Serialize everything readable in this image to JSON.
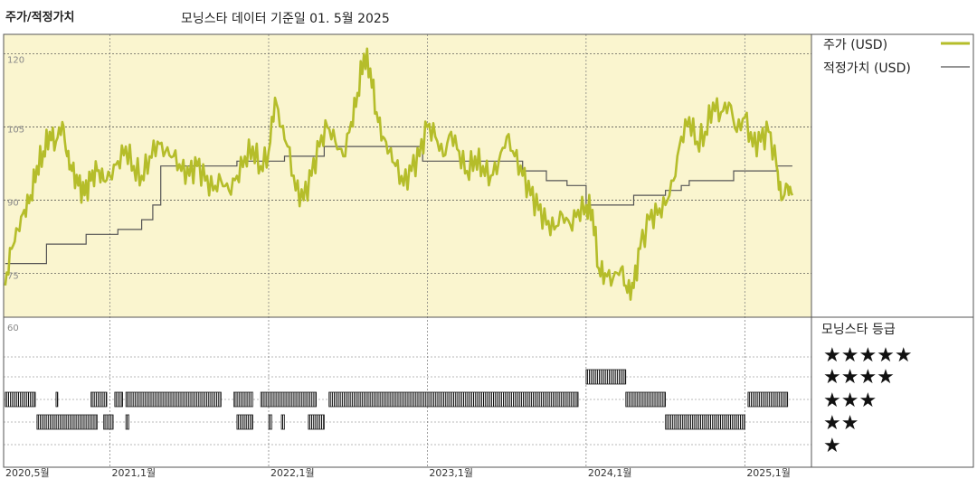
{
  "header": {
    "title": "주가/적정가치",
    "subtitle": "모닝스타 데이터 기준일 01. 5월 2025"
  },
  "legend": {
    "price_label": "주가 (USD)",
    "fair_label": "적정가치 (USD)",
    "price_color": "#b5bd2a",
    "fair_color": "#555555"
  },
  "rating_panel": {
    "title": "모닝스타 등급",
    "ymax_label": "60",
    "star_labels": [
      "★★★★★",
      "★★★★",
      "★★★",
      "★★",
      "★"
    ]
  },
  "chart_data": {
    "type": "line",
    "xlim": [
      2020.33,
      2025.42
    ],
    "ylim": [
      66,
      124
    ],
    "y_ticks": [
      {
        "value": 120,
        "label": "120"
      },
      {
        "value": 105,
        "label": "105"
      },
      {
        "value": 90,
        "label": "90"
      },
      {
        "value": 75,
        "label": "75"
      }
    ],
    "x_ticks": [
      {
        "value": 2020.36,
        "label": "2020,5월"
      },
      {
        "value": 2021.0,
        "label": "2021,1월"
      },
      {
        "value": 2022.0,
        "label": "2022,1월"
      },
      {
        "value": 2023.0,
        "label": "2023,1월"
      },
      {
        "value": 2024.0,
        "label": "2024,1월"
      },
      {
        "value": 2025.0,
        "label": "2025,1월"
      }
    ],
    "series": [
      {
        "name": "주가 (USD)",
        "color": "#b5bd2a",
        "points": [
          [
            2020.34,
            72.5
          ],
          [
            2020.38,
            80
          ],
          [
            2020.42,
            84
          ],
          [
            2020.46,
            88
          ],
          [
            2020.5,
            91
          ],
          [
            2020.54,
            97
          ],
          [
            2020.58,
            100
          ],
          [
            2020.62,
            104
          ],
          [
            2020.66,
            102
          ],
          [
            2020.7,
            106
          ],
          [
            2020.73,
            99
          ],
          [
            2020.76,
            96
          ],
          [
            2020.8,
            93
          ],
          [
            2020.84,
            91
          ],
          [
            2020.88,
            94
          ],
          [
            2020.92,
            96
          ],
          [
            2020.96,
            94
          ],
          [
            2021.0,
            95
          ],
          [
            2021.05,
            98
          ],
          [
            2021.1,
            101
          ],
          [
            2021.15,
            97
          ],
          [
            2021.2,
            95
          ],
          [
            2021.25,
            99
          ],
          [
            2021.3,
            102
          ],
          [
            2021.35,
            100
          ],
          [
            2021.4,
            99
          ],
          [
            2021.45,
            96
          ],
          [
            2021.5,
            95
          ],
          [
            2021.55,
            97
          ],
          [
            2021.6,
            94
          ],
          [
            2021.65,
            92
          ],
          [
            2021.7,
            94
          ],
          [
            2021.75,
            92
          ],
          [
            2021.8,
            95
          ],
          [
            2021.85,
            99
          ],
          [
            2021.9,
            101
          ],
          [
            2021.95,
            97
          ],
          [
            2022.0,
            100
          ],
          [
            2022.04,
            111
          ],
          [
            2022.08,
            105
          ],
          [
            2022.12,
            101
          ],
          [
            2022.17,
            92
          ],
          [
            2022.22,
            90
          ],
          [
            2022.27,
            95
          ],
          [
            2022.32,
            101
          ],
          [
            2022.37,
            105
          ],
          [
            2022.42,
            102
          ],
          [
            2022.47,
            99
          ],
          [
            2022.52,
            106
          ],
          [
            2022.56,
            112
          ],
          [
            2022.6,
            120
          ],
          [
            2022.64,
            117
          ],
          [
            2022.68,
            108
          ],
          [
            2022.72,
            103
          ],
          [
            2022.76,
            100
          ],
          [
            2022.8,
            97
          ],
          [
            2022.85,
            93
          ],
          [
            2022.9,
            96
          ],
          [
            2022.95,
            99
          ],
          [
            2023.0,
            105
          ],
          [
            2023.05,
            103
          ],
          [
            2023.1,
            99
          ],
          [
            2023.15,
            104
          ],
          [
            2023.2,
            100
          ],
          [
            2023.25,
            96
          ],
          [
            2023.3,
            99
          ],
          [
            2023.35,
            97
          ],
          [
            2023.4,
            95
          ],
          [
            2023.45,
            98
          ],
          [
            2023.5,
            103
          ],
          [
            2023.55,
            99
          ],
          [
            2023.6,
            95
          ],
          [
            2023.65,
            91
          ],
          [
            2023.7,
            88
          ],
          [
            2023.75,
            85
          ],
          [
            2023.8,
            84
          ],
          [
            2023.85,
            87
          ],
          [
            2023.9,
            85
          ],
          [
            2023.95,
            88
          ],
          [
            2024.0,
            89
          ],
          [
            2024.04,
            88
          ],
          [
            2024.08,
            76
          ],
          [
            2024.12,
            75
          ],
          [
            2024.17,
            74
          ],
          [
            2024.22,
            76
          ],
          [
            2024.26,
            71
          ],
          [
            2024.3,
            72
          ],
          [
            2024.34,
            80
          ],
          [
            2024.4,
            86
          ],
          [
            2024.45,
            87
          ],
          [
            2024.5,
            89
          ],
          [
            2024.55,
            94
          ],
          [
            2024.6,
            103
          ],
          [
            2024.65,
            107
          ],
          [
            2024.7,
            102
          ],
          [
            2024.75,
            104
          ],
          [
            2024.8,
            110
          ],
          [
            2024.85,
            108
          ],
          [
            2024.9,
            110
          ],
          [
            2024.95,
            104
          ],
          [
            2025.0,
            107
          ],
          [
            2025.05,
            101
          ],
          [
            2025.1,
            102
          ],
          [
            2025.15,
            104
          ],
          [
            2025.2,
            97
          ],
          [
            2025.23,
            90
          ],
          [
            2025.27,
            93
          ],
          [
            2025.3,
            91
          ]
        ]
      },
      {
        "name": "적정가치 (USD)",
        "color": "#555555",
        "step": true,
        "points": [
          [
            2020.34,
            77
          ],
          [
            2020.6,
            77
          ],
          [
            2020.6,
            81
          ],
          [
            2020.85,
            81
          ],
          [
            2020.85,
            83
          ],
          [
            2021.05,
            83
          ],
          [
            2021.05,
            84
          ],
          [
            2021.2,
            84
          ],
          [
            2021.2,
            86
          ],
          [
            2021.27,
            86
          ],
          [
            2021.27,
            89
          ],
          [
            2021.32,
            89
          ],
          [
            2021.32,
            97
          ],
          [
            2021.8,
            97
          ],
          [
            2021.8,
            98
          ],
          [
            2022.1,
            98
          ],
          [
            2022.1,
            99
          ],
          [
            2022.35,
            99
          ],
          [
            2022.35,
            101
          ],
          [
            2022.97,
            101
          ],
          [
            2022.97,
            98
          ],
          [
            2023.6,
            98
          ],
          [
            2023.6,
            96
          ],
          [
            2023.75,
            96
          ],
          [
            2023.75,
            94
          ],
          [
            2023.88,
            94
          ],
          [
            2023.88,
            93
          ],
          [
            2024.0,
            93
          ],
          [
            2024.0,
            89
          ],
          [
            2024.3,
            89
          ],
          [
            2024.3,
            91
          ],
          [
            2024.5,
            91
          ],
          [
            2024.5,
            92
          ],
          [
            2024.6,
            92
          ],
          [
            2024.6,
            93
          ],
          [
            2024.65,
            93
          ],
          [
            2024.65,
            94
          ],
          [
            2024.93,
            94
          ],
          [
            2024.93,
            96
          ],
          [
            2025.2,
            96
          ],
          [
            2025.2,
            97
          ],
          [
            2025.3,
            97
          ]
        ]
      }
    ],
    "ratings": [
      {
        "stars": 4,
        "segments": [
          [
            2024.0,
            2024.25
          ]
        ]
      },
      {
        "stars": 3,
        "segments": [
          [
            2020.34,
            2020.53
          ],
          [
            2020.66,
            2020.67
          ],
          [
            2020.88,
            2020.98
          ],
          [
            2021.03,
            2021.08
          ],
          [
            2021.1,
            2021.7
          ],
          [
            2021.78,
            2021.9
          ],
          [
            2021.95,
            2022.3
          ],
          [
            2022.38,
            2023.95
          ],
          [
            2024.25,
            2024.5
          ],
          [
            2025.02,
            2025.27
          ]
        ]
      },
      {
        "stars": 2,
        "segments": [
          [
            2020.54,
            2020.92
          ],
          [
            2020.96,
            2021.02
          ],
          [
            2021.1,
            2021.12
          ],
          [
            2021.8,
            2021.9
          ],
          [
            2022.0,
            2022.02
          ],
          [
            2022.08,
            2022.1
          ],
          [
            2022.25,
            2022.35
          ],
          [
            2024.5,
            2025.0
          ]
        ]
      }
    ]
  }
}
